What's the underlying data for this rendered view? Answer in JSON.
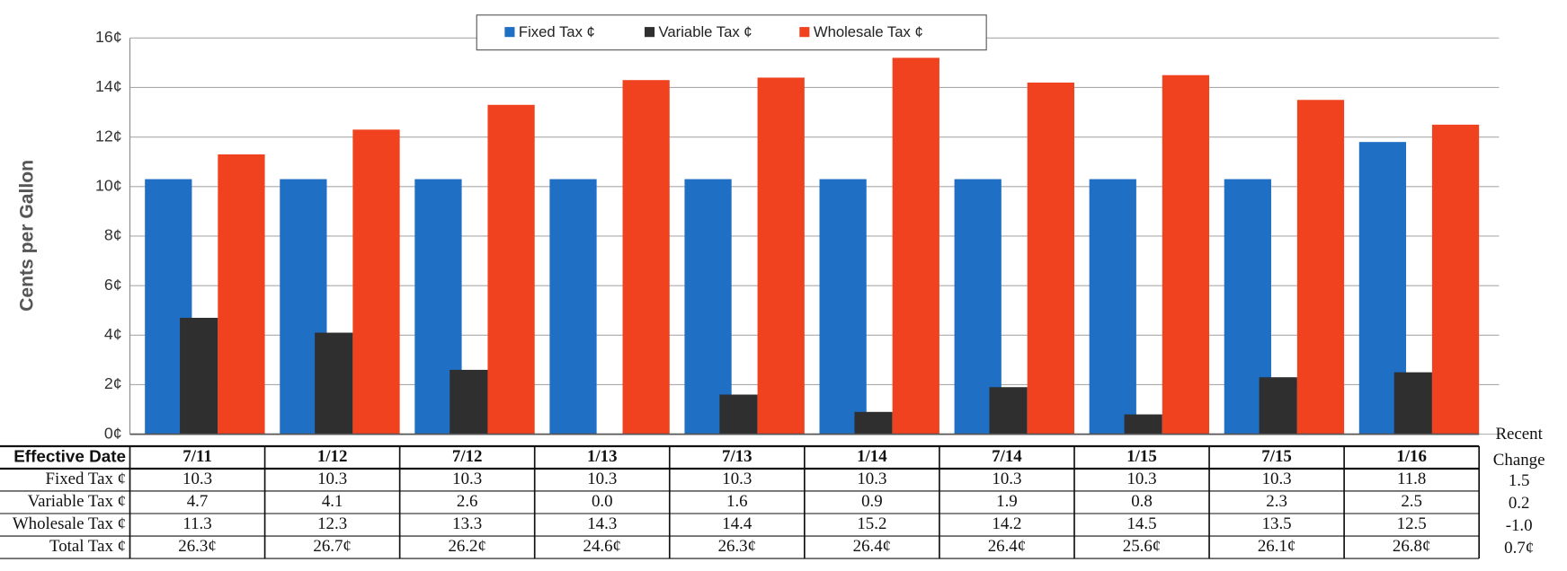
{
  "chart_data": {
    "type": "bar",
    "y_label": "Cents per Gallon",
    "categories": [
      "7/11",
      "1/12",
      "7/12",
      "1/13",
      "7/13",
      "1/14",
      "7/14",
      "1/15",
      "7/15",
      "1/16"
    ],
    "series": [
      {
        "name": "Fixed Tax ¢",
        "color": "#1f6fc5",
        "values": [
          10.3,
          10.3,
          10.3,
          10.3,
          10.3,
          10.3,
          10.3,
          10.3,
          10.3,
          11.8
        ]
      },
      {
        "name": "Variable Tax ¢",
        "color": "#2f2f2f",
        "values": [
          4.7,
          4.1,
          2.6,
          0.0,
          1.6,
          0.9,
          1.9,
          0.8,
          2.3,
          2.5
        ],
        "value_labels": [
          "4.7",
          "4.1",
          "2.6",
          "0.0",
          "1.6",
          "0.9",
          "1.9",
          "0.8",
          "2.3",
          "2.5"
        ]
      },
      {
        "name": "Wholesale Tax ¢",
        "color": "#f0421f",
        "values": [
          11.3,
          12.3,
          13.3,
          14.3,
          14.4,
          15.2,
          14.2,
          14.5,
          13.5,
          12.5
        ]
      }
    ],
    "ylim": [
      0,
      16
    ],
    "yticks": [
      {
        "value": 0,
        "label": "0¢"
      },
      {
        "value": 2,
        "label": "2¢"
      },
      {
        "value": 4,
        "label": "4¢"
      },
      {
        "value": 6,
        "label": "6¢"
      },
      {
        "value": 8,
        "label": "8¢"
      },
      {
        "value": 10,
        "label": "10¢"
      },
      {
        "value": 12,
        "label": "12¢"
      },
      {
        "value": 14,
        "label": "14¢"
      },
      {
        "value": 16,
        "label": "16¢"
      }
    ],
    "grid": true,
    "legend": "top",
    "table": {
      "row_header": "Effective Date",
      "totals": {
        "name": "Total Tax ¢",
        "values": [
          26.3,
          26.7,
          26.2,
          24.6,
          26.3,
          26.4,
          26.4,
          25.6,
          26.1,
          26.8
        ],
        "value_labels": [
          "26.3¢",
          "26.7¢",
          "26.2¢",
          "24.6¢",
          "26.3¢",
          "26.4¢",
          "26.4¢",
          "25.6¢",
          "26.1¢",
          "26.8¢"
        ]
      },
      "recent_change": {
        "header": [
          "Recent",
          "Change"
        ],
        "values": [
          1.5,
          0.2,
          -1.0,
          0.7
        ],
        "value_labels": [
          "1.5",
          "0.2",
          "-1.0",
          "0.7¢"
        ]
      }
    }
  }
}
